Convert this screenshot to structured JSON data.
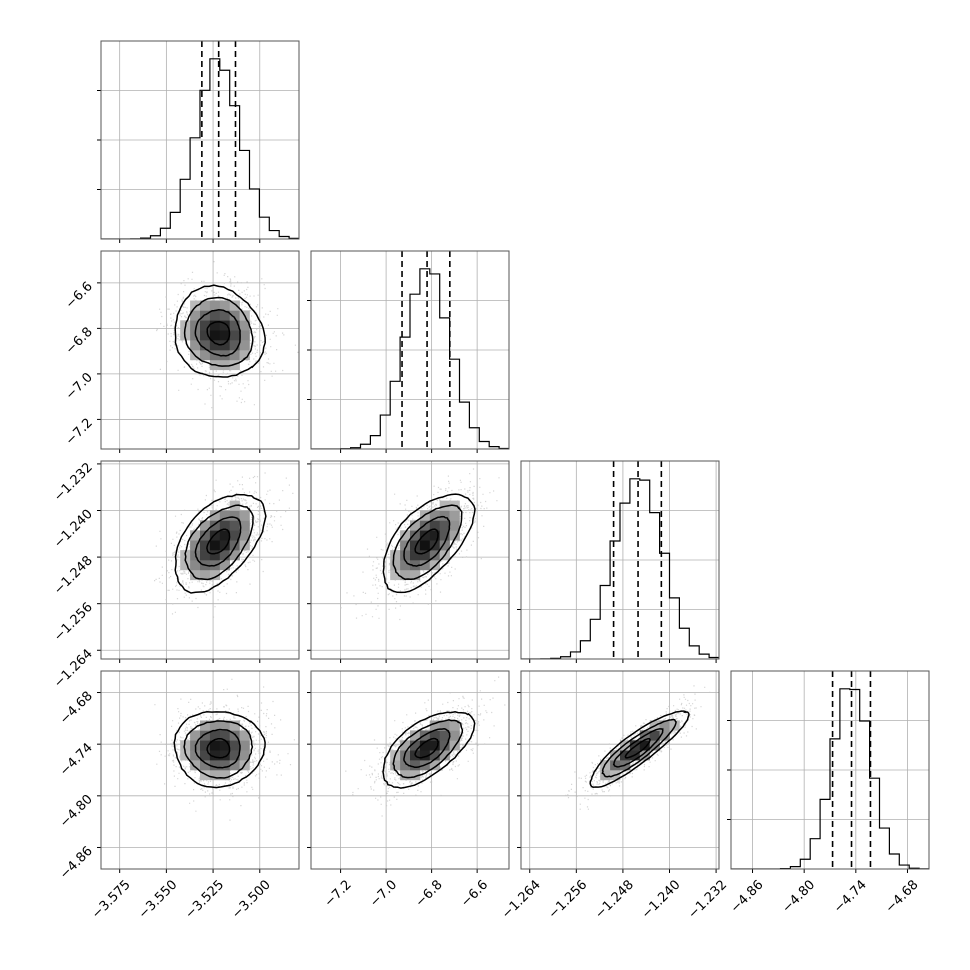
{
  "chart_data": {
    "type": "corner",
    "parameters": [
      {
        "index": 0,
        "range": [
          -3.585,
          -3.479
        ],
        "ticks": [
          -3.575,
          -3.55,
          -3.525,
          -3.5
        ],
        "tick_labels": [
          "−3.575",
          "−3.550",
          "−3.525",
          "−3.500"
        ],
        "median": -3.522,
        "q16": -3.531,
        "q84": -3.513,
        "sigma": 0.012
      },
      {
        "index": 1,
        "range": [
          -7.33,
          -6.46
        ],
        "ticks": [
          -7.2,
          -7.0,
          -6.8,
          -6.6
        ],
        "tick_labels": [
          "−7.2",
          "−7.0",
          "−6.8",
          "−6.6"
        ],
        "median": -6.82,
        "q16": -6.93,
        "q84": -6.72,
        "sigma": 0.1
      },
      {
        "index": 2,
        "range": [
          -1.2655,
          -1.2315
        ],
        "ticks": [
          -1.264,
          -1.256,
          -1.248,
          -1.24,
          -1.232
        ],
        "tick_labels": [
          "−1.264",
          "−1.256",
          "−1.248",
          "−1.240",
          "−1.232"
        ],
        "median": -1.2454,
        "q16": -1.2496,
        "q84": -1.2414,
        "sigma": 0.0042
      },
      {
        "index": 3,
        "range": [
          -4.885,
          -4.655
        ],
        "ticks": [
          -4.86,
          -4.8,
          -4.74,
          -4.68
        ],
        "tick_labels": [
          "−4.86",
          "−4.80",
          "−4.74",
          "−4.68"
        ],
        "median": -4.745,
        "q16": -4.767,
        "q84": -4.723,
        "sigma": 0.022
      }
    ],
    "correlations": {
      "1-0": -0.1,
      "2-0": 0.5,
      "2-1": 0.6,
      "3-0": 0.0,
      "3-1": 0.6,
      "3-2": 0.88
    },
    "histogram_bins": 20,
    "contour_levels": [
      0.5,
      1.0,
      1.5,
      2.0
    ],
    "quantiles": [
      0.16,
      0.5,
      0.84
    ],
    "grid": true,
    "colors": {
      "line": "#000000",
      "grid": "#b0b0b0",
      "scatter": "#c4c4c4"
    }
  }
}
